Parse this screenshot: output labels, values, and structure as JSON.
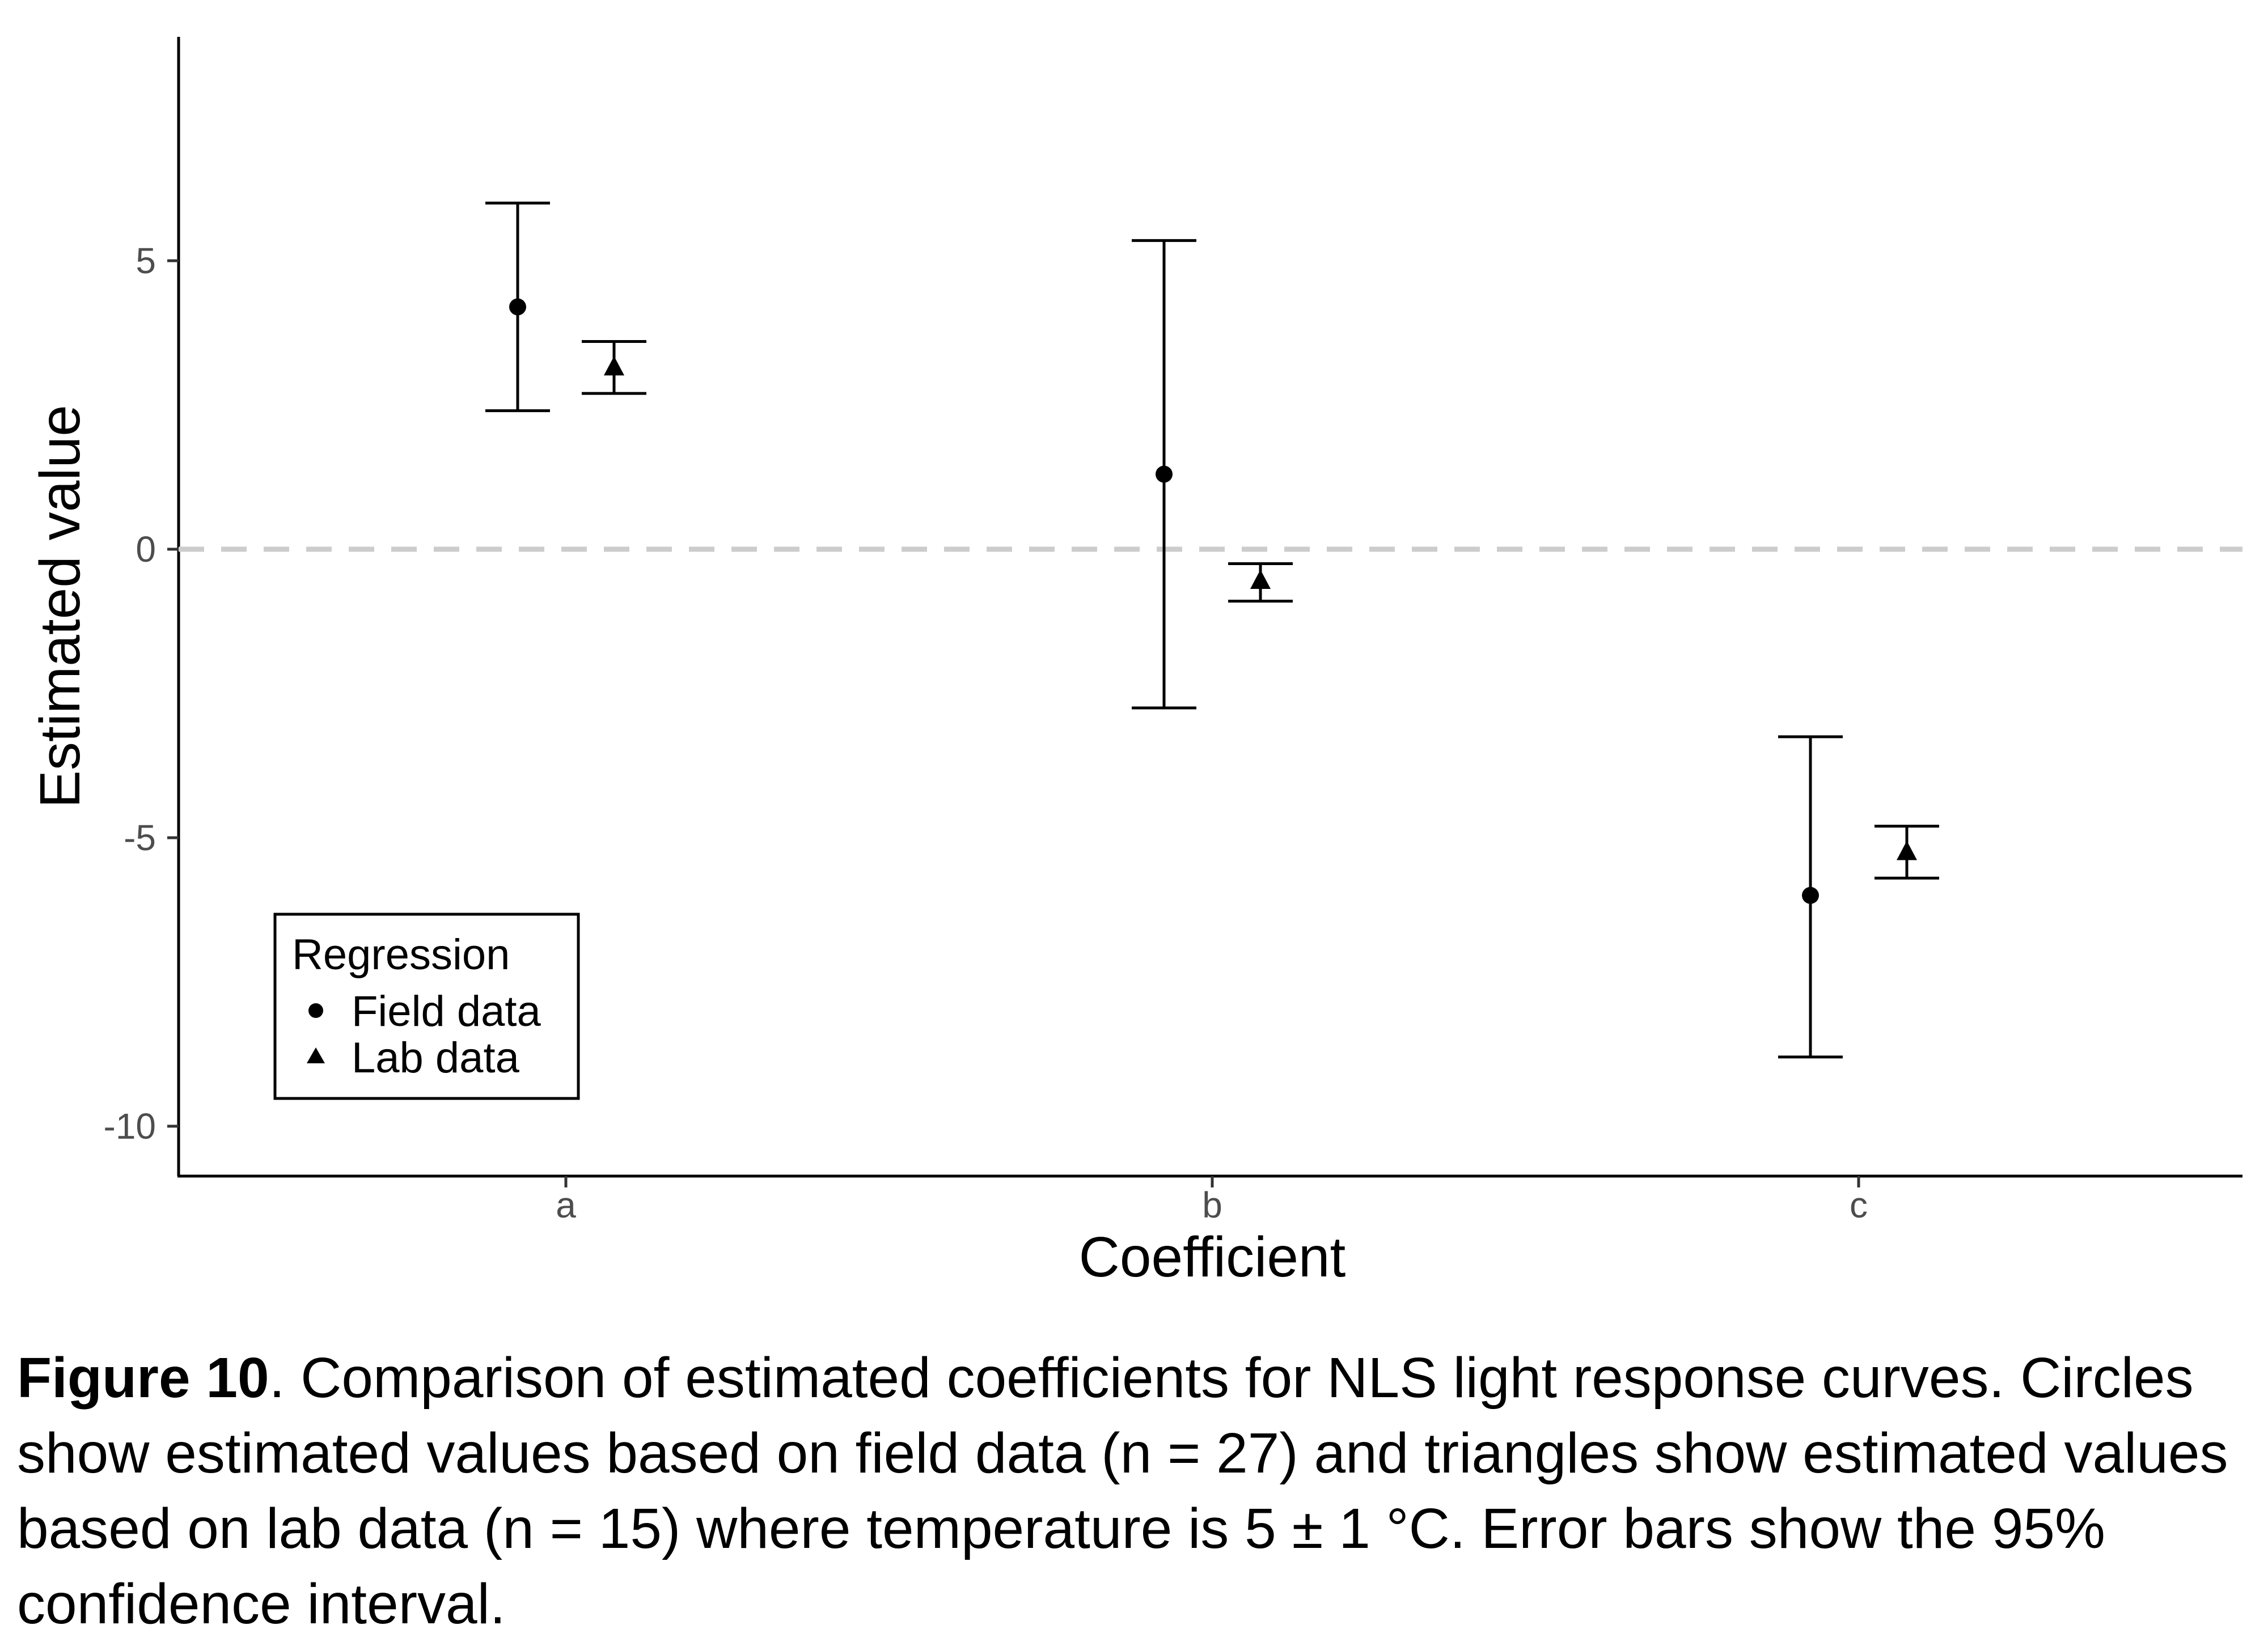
{
  "chart_data": {
    "type": "scatter",
    "xlabel": "Coefficient",
    "ylabel": "Estimated value",
    "categories": [
      "a",
      "b",
      "c"
    ],
    "yticks": [
      5,
      0,
      -5,
      -10
    ],
    "ytick_labels": [
      "5",
      "0",
      "-5",
      "-10"
    ],
    "ylim": [
      -10.9,
      8.8
    ],
    "reference_line": {
      "y": 0,
      "style": "dashed",
      "color": "#cccccc"
    },
    "legend": {
      "title": "Regression",
      "position": "bottom-left"
    },
    "grid": false,
    "series": [
      {
        "name": "Field data",
        "marker": "circle",
        "values": [
          4.2,
          1.3,
          -6.0
        ],
        "lower": [
          2.4,
          -2.75,
          -8.8
        ],
        "upper": [
          6.0,
          5.35,
          -3.25
        ]
      },
      {
        "name": "Lab data",
        "marker": "triangle",
        "values": [
          3.15,
          -0.55,
          -5.25
        ],
        "lower": [
          2.7,
          -0.9,
          -5.7
        ],
        "upper": [
          3.6,
          -0.25,
          -4.8
        ]
      }
    ]
  },
  "caption": {
    "label": "Figure 10",
    "text": ". Comparison of estimated coefficients for NLS light response curves. Circles show estimated values based on field data (n = 27) and triangles show estimated values based on lab data (n = 15) where temperature is 5 ± 1 °C. Error bars show the 95% confidence interval."
  }
}
